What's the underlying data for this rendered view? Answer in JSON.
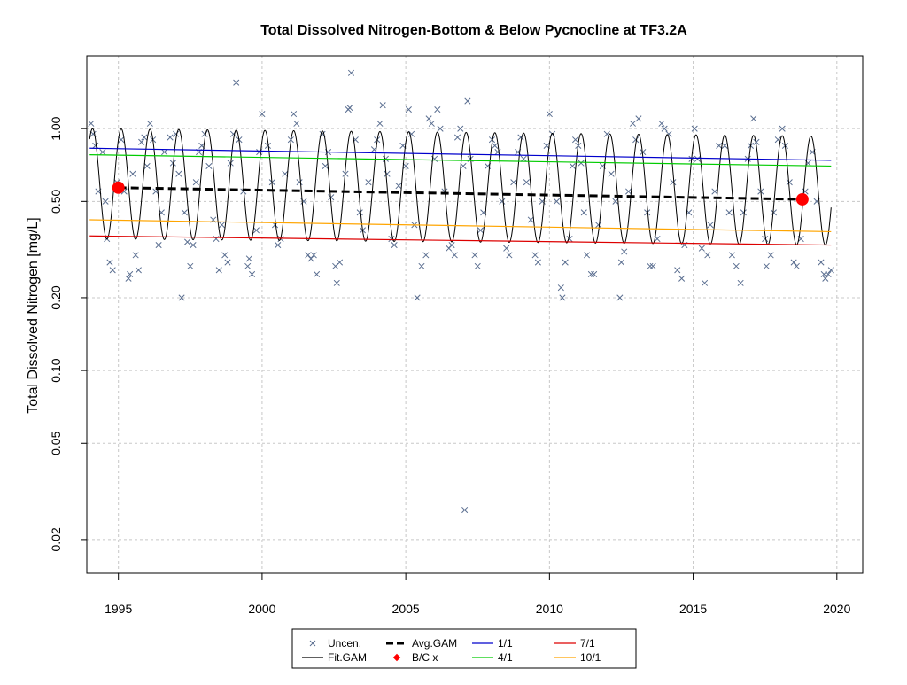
{
  "chart_data": {
    "type": "line",
    "title": "Total Dissolved Nitrogen-Bottom & Below Pycnocline at TF3.2A",
    "xlabel": "",
    "ylabel": "Total Dissolved Nitrogen [mg/L]",
    "y_scale": "log",
    "xlim": [
      1993.9,
      2020.9
    ],
    "ylim": [
      0.0145,
      2.0
    ],
    "grid": true,
    "x_ticks": [
      {
        "value": 1995,
        "label": "1995"
      },
      {
        "value": 2000,
        "label": "2000"
      },
      {
        "value": 2005,
        "label": "2005"
      },
      {
        "value": 2010,
        "label": "2010"
      },
      {
        "value": 2015,
        "label": "2015"
      },
      {
        "value": 2020,
        "label": "2020"
      }
    ],
    "y_ticks": [
      {
        "value": 0.02,
        "label": "0.02"
      },
      {
        "value": 0.05,
        "label": "0.05"
      },
      {
        "value": 0.1,
        "label": "0.10"
      },
      {
        "value": 0.2,
        "label": "0.20"
      },
      {
        "value": 0.5,
        "label": "0.50"
      },
      {
        "value": 1.0,
        "label": "1.00"
      }
    ],
    "fit_gam": {
      "x_range": [
        1994.0,
        2019.8
      ],
      "peak_start": 1.0,
      "peak_end": 0.93,
      "trough_start": 0.35,
      "trough_end": 0.33,
      "peak_phase": 0.1
    },
    "series": [
      {
        "name": "Uncen.",
        "type": "scatter",
        "marker": "x",
        "color": "#5a6e90",
        "points": [
          [
            1994.05,
            1.05
          ],
          [
            1994.12,
            0.95
          ],
          [
            1994.2,
            0.85
          ],
          [
            1994.3,
            0.55
          ],
          [
            1994.45,
            0.8
          ],
          [
            1994.55,
            0.5
          ],
          [
            1994.6,
            0.35
          ],
          [
            1994.7,
            0.28
          ],
          [
            1994.8,
            0.26
          ],
          [
            1994.95,
            0.6
          ],
          [
            1995.1,
            0.9
          ],
          [
            1995.2,
            0.55
          ],
          [
            1995.35,
            0.24
          ],
          [
            1995.4,
            0.25
          ],
          [
            1995.5,
            0.65
          ],
          [
            1995.6,
            0.3
          ],
          [
            1995.7,
            0.26
          ],
          [
            1995.8,
            0.88
          ],
          [
            1995.9,
            0.92
          ],
          [
            1996.0,
            0.7
          ],
          [
            1996.1,
            1.05
          ],
          [
            1996.2,
            0.9
          ],
          [
            1996.3,
            0.55
          ],
          [
            1996.4,
            0.33
          ],
          [
            1996.5,
            0.45
          ],
          [
            1996.6,
            0.8
          ],
          [
            1996.8,
            0.92
          ],
          [
            1996.9,
            0.72
          ],
          [
            1997.0,
            0.95
          ],
          [
            1997.1,
            0.65
          ],
          [
            1997.2,
            0.2
          ],
          [
            1997.3,
            0.45
          ],
          [
            1997.4,
            0.34
          ],
          [
            1997.5,
            0.27
          ],
          [
            1997.6,
            0.33
          ],
          [
            1997.7,
            0.6
          ],
          [
            1997.8,
            0.8
          ],
          [
            1997.9,
            0.85
          ],
          [
            1998.0,
            0.95
          ],
          [
            1998.15,
            0.7
          ],
          [
            1998.3,
            0.42
          ],
          [
            1998.4,
            0.35
          ],
          [
            1998.5,
            0.26
          ],
          [
            1998.6,
            0.4
          ],
          [
            1998.7,
            0.3
          ],
          [
            1998.8,
            0.28
          ],
          [
            1998.9,
            0.72
          ],
          [
            1999.0,
            0.95
          ],
          [
            1999.1,
            1.55
          ],
          [
            1999.2,
            0.9
          ],
          [
            1999.35,
            0.55
          ],
          [
            1999.5,
            0.27
          ],
          [
            1999.55,
            0.29
          ],
          [
            1999.65,
            0.25
          ],
          [
            1999.8,
            0.38
          ],
          [
            1999.9,
            0.8
          ],
          [
            2000.0,
            1.15
          ],
          [
            2000.2,
            0.85
          ],
          [
            2000.35,
            0.6
          ],
          [
            2000.45,
            0.4
          ],
          [
            2000.55,
            0.33
          ],
          [
            2000.65,
            0.35
          ],
          [
            2000.8,
            0.65
          ],
          [
            2001.0,
            0.9
          ],
          [
            2001.1,
            1.15
          ],
          [
            2001.2,
            1.05
          ],
          [
            2001.3,
            0.6
          ],
          [
            2001.45,
            0.5
          ],
          [
            2001.6,
            0.3
          ],
          [
            2001.7,
            0.29
          ],
          [
            2001.8,
            0.3
          ],
          [
            2001.9,
            0.25
          ],
          [
            2002.1,
            0.95
          ],
          [
            2002.2,
            0.7
          ],
          [
            2002.3,
            0.8
          ],
          [
            2002.4,
            0.52
          ],
          [
            2002.55,
            0.27
          ],
          [
            2002.6,
            0.23
          ],
          [
            2002.7,
            0.28
          ],
          [
            2002.9,
            0.65
          ],
          [
            2003.0,
            1.2
          ],
          [
            2003.05,
            1.22
          ],
          [
            2003.1,
            1.7
          ],
          [
            2003.25,
            0.9
          ],
          [
            2003.4,
            0.45
          ],
          [
            2003.5,
            0.38
          ],
          [
            2003.7,
            0.6
          ],
          [
            2003.9,
            0.82
          ],
          [
            2004.0,
            0.9
          ],
          [
            2004.1,
            1.05
          ],
          [
            2004.2,
            1.25
          ],
          [
            2004.3,
            0.75
          ],
          [
            2004.35,
            0.65
          ],
          [
            2004.5,
            0.35
          ],
          [
            2004.6,
            0.33
          ],
          [
            2004.75,
            0.58
          ],
          [
            2004.9,
            0.85
          ],
          [
            2005.0,
            0.7
          ],
          [
            2005.1,
            1.2
          ],
          [
            2005.2,
            0.95
          ],
          [
            2005.3,
            0.4
          ],
          [
            2005.4,
            0.2
          ],
          [
            2005.55,
            0.27
          ],
          [
            2005.7,
            0.3
          ],
          [
            2005.8,
            1.1
          ],
          [
            2005.9,
            1.05
          ],
          [
            2006.0,
            0.75
          ],
          [
            2006.1,
            1.2
          ],
          [
            2006.2,
            1.0
          ],
          [
            2006.35,
            0.55
          ],
          [
            2006.5,
            0.32
          ],
          [
            2006.6,
            0.33
          ],
          [
            2006.7,
            0.3
          ],
          [
            2006.8,
            0.92
          ],
          [
            2006.9,
            1.0
          ],
          [
            2007.0,
            0.7
          ],
          [
            2007.05,
            0.0265
          ],
          [
            2007.15,
            1.3
          ],
          [
            2007.25,
            0.75
          ],
          [
            2007.4,
            0.3
          ],
          [
            2007.5,
            0.27
          ],
          [
            2007.6,
            0.38
          ],
          [
            2007.7,
            0.45
          ],
          [
            2007.85,
            0.7
          ],
          [
            2008.0,
            0.9
          ],
          [
            2008.1,
            0.85
          ],
          [
            2008.2,
            0.8
          ],
          [
            2008.35,
            0.5
          ],
          [
            2008.5,
            0.32
          ],
          [
            2008.6,
            0.3
          ],
          [
            2008.75,
            0.6
          ],
          [
            2008.9,
            0.8
          ],
          [
            2009.0,
            0.92
          ],
          [
            2009.1,
            0.75
          ],
          [
            2009.2,
            0.6
          ],
          [
            2009.35,
            0.42
          ],
          [
            2009.5,
            0.3
          ],
          [
            2009.6,
            0.28
          ],
          [
            2009.75,
            0.5
          ],
          [
            2009.9,
            0.85
          ],
          [
            2010.0,
            1.15
          ],
          [
            2010.1,
            0.95
          ],
          [
            2010.25,
            0.5
          ],
          [
            2010.4,
            0.22
          ],
          [
            2010.45,
            0.2
          ],
          [
            2010.55,
            0.28
          ],
          [
            2010.7,
            0.35
          ],
          [
            2010.8,
            0.7
          ],
          [
            2010.9,
            0.9
          ],
          [
            2011.0,
            0.85
          ],
          [
            2011.1,
            0.72
          ],
          [
            2011.2,
            0.45
          ],
          [
            2011.3,
            0.3
          ],
          [
            2011.45,
            0.25
          ],
          [
            2011.55,
            0.25
          ],
          [
            2011.7,
            0.4
          ],
          [
            2011.85,
            0.7
          ],
          [
            2012.0,
            0.95
          ],
          [
            2012.15,
            0.65
          ],
          [
            2012.3,
            0.5
          ],
          [
            2012.45,
            0.2
          ],
          [
            2012.5,
            0.28
          ],
          [
            2012.6,
            0.31
          ],
          [
            2012.75,
            0.55
          ],
          [
            2012.9,
            1.05
          ],
          [
            2013.0,
            0.9
          ],
          [
            2013.1,
            1.1
          ],
          [
            2013.25,
            0.8
          ],
          [
            2013.4,
            0.45
          ],
          [
            2013.5,
            0.27
          ],
          [
            2013.6,
            0.27
          ],
          [
            2013.75,
            0.35
          ],
          [
            2013.9,
            1.05
          ],
          [
            2014.0,
            1.0
          ],
          [
            2014.15,
            0.95
          ],
          [
            2014.3,
            0.6
          ],
          [
            2014.45,
            0.26
          ],
          [
            2014.6,
            0.24
          ],
          [
            2014.7,
            0.33
          ],
          [
            2014.85,
            0.45
          ],
          [
            2014.95,
            0.75
          ],
          [
            2015.05,
            1.0
          ],
          [
            2015.15,
            0.75
          ],
          [
            2015.3,
            0.32
          ],
          [
            2015.4,
            0.23
          ],
          [
            2015.5,
            0.3
          ],
          [
            2015.6,
            0.4
          ],
          [
            2015.75,
            0.55
          ],
          [
            2015.9,
            0.85
          ],
          [
            2016.1,
            0.85
          ],
          [
            2016.25,
            0.45
          ],
          [
            2016.35,
            0.3
          ],
          [
            2016.5,
            0.27
          ],
          [
            2016.65,
            0.23
          ],
          [
            2016.75,
            0.45
          ],
          [
            2016.9,
            0.75
          ],
          [
            2017.0,
            0.85
          ],
          [
            2017.1,
            1.1
          ],
          [
            2017.2,
            0.88
          ],
          [
            2017.35,
            0.55
          ],
          [
            2017.5,
            0.35
          ],
          [
            2017.55,
            0.27
          ],
          [
            2017.7,
            0.3
          ],
          [
            2017.8,
            0.45
          ],
          [
            2017.95,
            0.9
          ],
          [
            2018.1,
            1.0
          ],
          [
            2018.2,
            0.85
          ],
          [
            2018.35,
            0.6
          ],
          [
            2018.5,
            0.28
          ],
          [
            2018.6,
            0.27
          ],
          [
            2018.75,
            0.35
          ],
          [
            2018.9,
            0.55
          ],
          [
            2019.0,
            0.72
          ],
          [
            2019.15,
            0.8
          ],
          [
            2019.3,
            0.5
          ],
          [
            2019.45,
            0.28
          ],
          [
            2019.55,
            0.25
          ],
          [
            2019.6,
            0.24
          ],
          [
            2019.7,
            0.25
          ],
          [
            2019.8,
            0.26
          ]
        ]
      },
      {
        "name": "Fit.GAM",
        "type": "line",
        "color": "#000000"
      },
      {
        "name": "Avg.GAM",
        "type": "line",
        "style": "dashed",
        "color": "#000000",
        "x": [
          1995.0,
          2018.8
        ],
        "y": [
          0.57,
          0.51
        ]
      },
      {
        "name": "B/C x",
        "type": "scatter",
        "marker": "dot",
        "color": "#ff0000",
        "points": [
          [
            1995.0,
            0.57
          ],
          [
            2018.8,
            0.51
          ]
        ]
      },
      {
        "name": "1/1",
        "type": "line",
        "color": "#0000cc",
        "x": [
          1994.0,
          2019.8
        ],
        "y": [
          0.83,
          0.74
        ]
      },
      {
        "name": "4/1",
        "type": "line",
        "color": "#00cc00",
        "x": [
          1994.0,
          2019.8
        ],
        "y": [
          0.78,
          0.7
        ]
      },
      {
        "name": "7/1",
        "type": "line",
        "color": "#dd0000",
        "x": [
          1994.0,
          2019.8
        ],
        "y": [
          0.36,
          0.33
        ]
      },
      {
        "name": "10/1",
        "type": "line",
        "color": "#ffa500",
        "x": [
          1994.0,
          2019.8
        ],
        "y": [
          0.42,
          0.375
        ]
      }
    ],
    "legend": {
      "placement": "bottom",
      "items": [
        {
          "label": "Uncen.",
          "symbol": "x",
          "color": "#5a6e90"
        },
        {
          "label": "Avg.GAM",
          "symbol": "dashed",
          "color": "#000000"
        },
        {
          "label": "1/1",
          "symbol": "line",
          "color": "#0000cc"
        },
        {
          "label": "7/1",
          "symbol": "line",
          "color": "#dd0000"
        },
        {
          "label": "Fit.GAM",
          "symbol": "line",
          "color": "#000000"
        },
        {
          "label": "B/C x",
          "symbol": "dot",
          "color": "#ff0000"
        },
        {
          "label": "4/1",
          "symbol": "line",
          "color": "#00cc00"
        },
        {
          "label": "10/1",
          "symbol": "line",
          "color": "#ffa500"
        }
      ]
    }
  }
}
